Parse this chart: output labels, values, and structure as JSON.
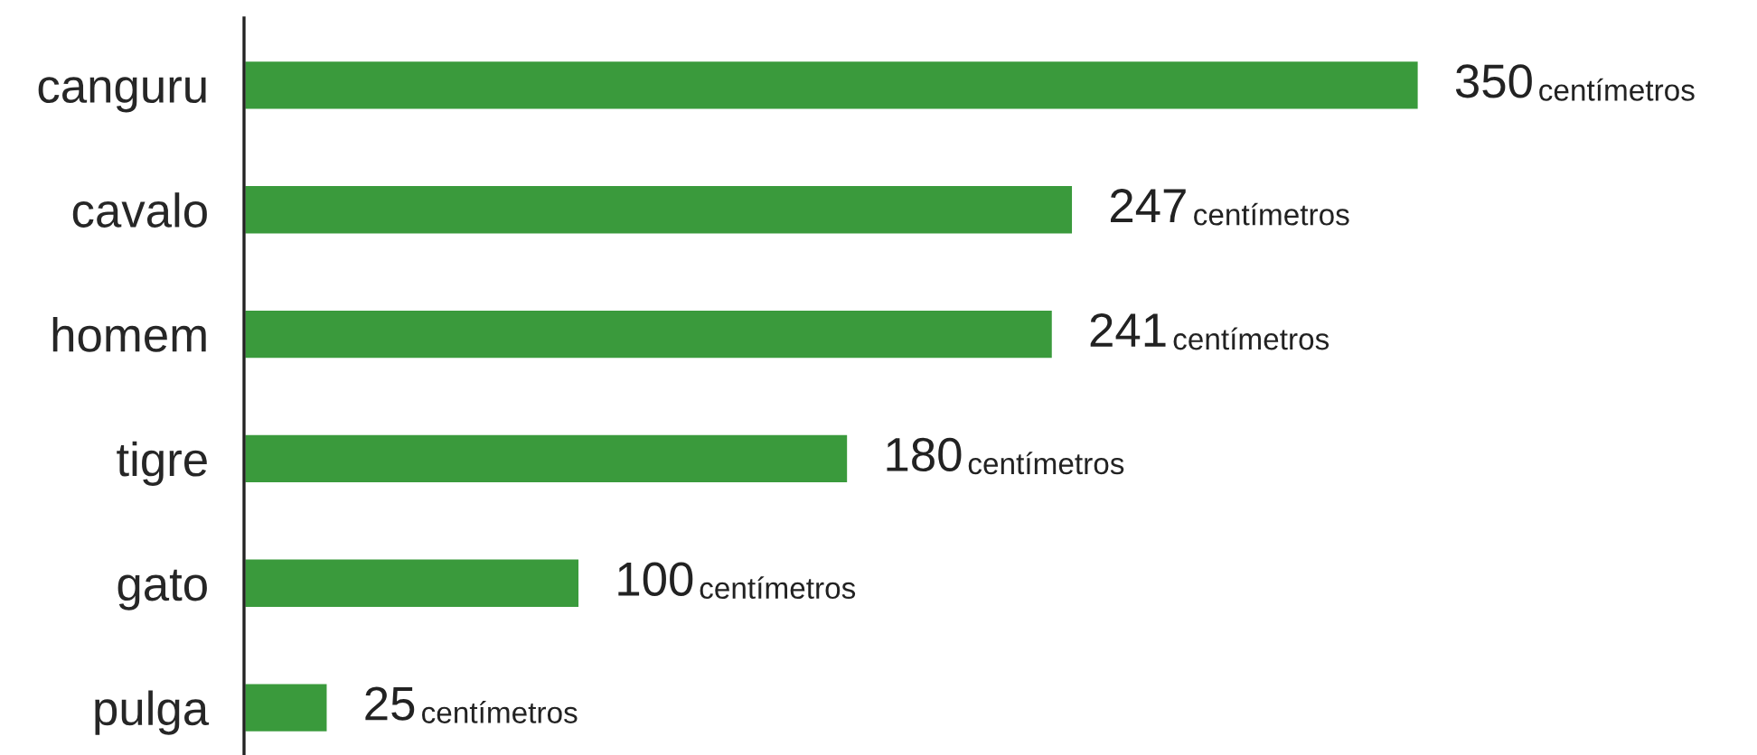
{
  "chart_data": {
    "type": "bar",
    "orientation": "horizontal",
    "categories": [
      "canguru",
      "cavalo",
      "homem",
      "tigre",
      "gato",
      "pulga"
    ],
    "values": [
      350,
      247,
      241,
      180,
      100,
      25
    ],
    "value_labels": [
      "350 centímetros",
      "247 centímetros",
      "241 centímetros",
      "180 centímetros",
      "100 centímetros",
      "25 centímetros"
    ],
    "color": "#3a9a3c",
    "grid": false,
    "legend": false,
    "tick_labels": "y"
  }
}
